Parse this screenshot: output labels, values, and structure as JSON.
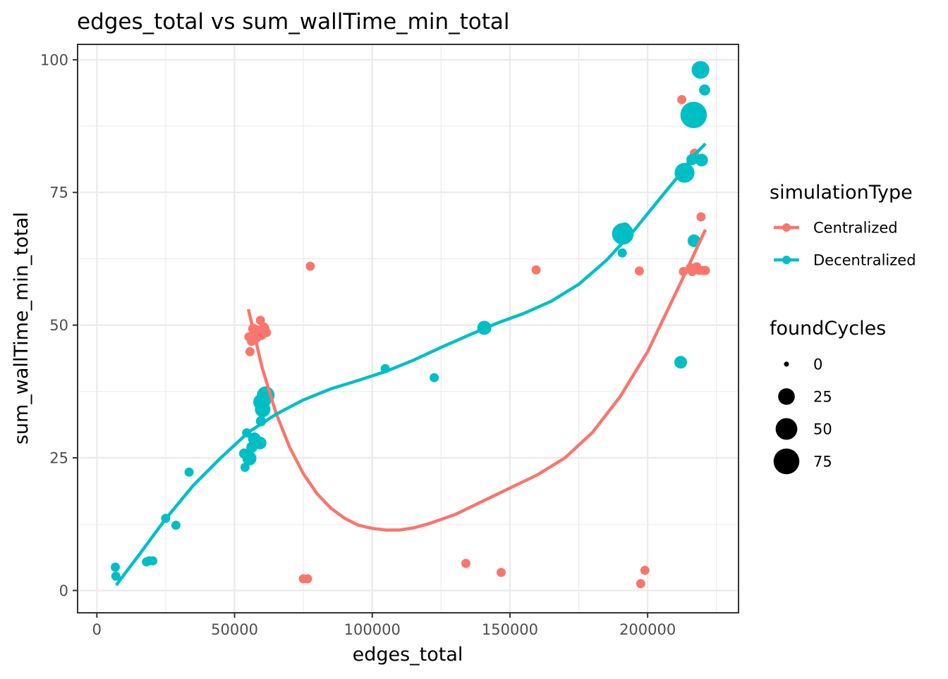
{
  "chart_data": {
    "type": "scatter",
    "title": "edges_total  vs  sum_wallTime_min_total",
    "xlabel": "edges_total",
    "ylabel": "sum_wallTime_min_total",
    "xlim": [
      -7000,
      233000
    ],
    "ylim": [
      -4.2,
      102.9
    ],
    "x_ticks": [
      0,
      50000,
      100000,
      150000,
      200000
    ],
    "x_tick_labels": [
      "0",
      "50000",
      "100000",
      "150000",
      "200000"
    ],
    "y_ticks": [
      0,
      25,
      50,
      75,
      100
    ],
    "y_tick_labels": [
      "0",
      "25",
      "50",
      "75",
      "100"
    ],
    "grid": true,
    "legend_position": "right",
    "colors": {
      "Centralized": "#F8766D",
      "Decentralized": "#00BFC4"
    },
    "color_legend": {
      "title": "simulationType",
      "entries": [
        "Centralized",
        "Decentralized"
      ]
    },
    "size_legend": {
      "title": "foundCycles",
      "entries": [
        {
          "label": "0",
          "value": 0
        },
        {
          "label": "25",
          "value": 25
        },
        {
          "label": "50",
          "value": 50
        },
        {
          "label": "75",
          "value": 75
        }
      ]
    },
    "series": [
      {
        "name": "Centralized",
        "points": [
          [
            55200,
            47.8,
            0
          ],
          [
            55600,
            45.0,
            0
          ],
          [
            56200,
            47.0,
            1
          ],
          [
            56800,
            49.3,
            3
          ],
          [
            57300,
            48.4,
            2
          ],
          [
            57900,
            47.6,
            1
          ],
          [
            58300,
            48.2,
            1
          ],
          [
            58800,
            49.0,
            2
          ],
          [
            59400,
            50.9,
            0
          ],
          [
            59800,
            48.1,
            1
          ],
          [
            60200,
            48.6,
            0
          ],
          [
            60600,
            49.6,
            1
          ],
          [
            61000,
            49.4,
            0
          ],
          [
            61600,
            48.6,
            0
          ],
          [
            77500,
            61.1,
            0
          ],
          [
            75000,
            2.2,
            0
          ],
          [
            76500,
            2.2,
            0
          ],
          [
            134000,
            5.1,
            0
          ],
          [
            146800,
            3.4,
            0
          ],
          [
            159500,
            60.4,
            0
          ],
          [
            197000,
            60.2,
            0
          ],
          [
            197500,
            1.3,
            0
          ],
          [
            199000,
            3.8,
            0
          ],
          [
            212400,
            92.5,
            0
          ],
          [
            213000,
            60.1,
            0
          ],
          [
            215500,
            60.8,
            0
          ],
          [
            216200,
            60.1,
            0
          ],
          [
            217000,
            82.4,
            0
          ],
          [
            217800,
            61.0,
            0
          ],
          [
            218800,
            60.3,
            0
          ],
          [
            219400,
            70.4,
            0
          ],
          [
            220300,
            60.3,
            0
          ],
          [
            221000,
            60.3,
            0
          ]
        ],
        "smooth": [
          [
            55000,
            53.0
          ],
          [
            60000,
            42.0
          ],
          [
            65000,
            33.5
          ],
          [
            70000,
            27.0
          ],
          [
            75000,
            22.0
          ],
          [
            80000,
            18.2
          ],
          [
            85000,
            15.5
          ],
          [
            90000,
            13.6
          ],
          [
            95000,
            12.3
          ],
          [
            100000,
            11.7
          ],
          [
            105000,
            11.4
          ],
          [
            110000,
            11.4
          ],
          [
            115000,
            11.8
          ],
          [
            120000,
            12.5
          ],
          [
            130000,
            14.3
          ],
          [
            140000,
            16.8
          ],
          [
            150000,
            19.3
          ],
          [
            160000,
            21.8
          ],
          [
            170000,
            25.0
          ],
          [
            180000,
            29.8
          ],
          [
            190000,
            36.5
          ],
          [
            200000,
            45.0
          ],
          [
            210000,
            55.8
          ],
          [
            215000,
            61.3
          ],
          [
            221000,
            68.0
          ]
        ]
      },
      {
        "name": "Decentralized",
        "points": [
          [
            6700,
            4.4,
            0
          ],
          [
            6900,
            2.7,
            0
          ],
          [
            18000,
            5.4,
            0
          ],
          [
            19000,
            5.6,
            0
          ],
          [
            20300,
            5.6,
            0
          ],
          [
            25000,
            13.6,
            0
          ],
          [
            28700,
            12.3,
            0
          ],
          [
            33500,
            22.3,
            0
          ],
          [
            53500,
            25.8,
            3
          ],
          [
            53800,
            23.2,
            0
          ],
          [
            54400,
            29.7,
            0
          ],
          [
            55400,
            24.9,
            15
          ],
          [
            56300,
            27.0,
            5
          ],
          [
            57200,
            28.6,
            10
          ],
          [
            58000,
            28.0,
            5
          ],
          [
            59300,
            27.8,
            10
          ],
          [
            59600,
            31.9,
            3
          ],
          [
            59800,
            35.5,
            25
          ],
          [
            60200,
            34.1,
            20
          ],
          [
            60800,
            35.9,
            15
          ],
          [
            61300,
            36.8,
            30
          ],
          [
            104700,
            41.8,
            0
          ],
          [
            122500,
            40.1,
            0
          ],
          [
            140700,
            49.5,
            15
          ],
          [
            190800,
            63.6,
            0
          ],
          [
            191000,
            67.2,
            50
          ],
          [
            191700,
            68.3,
            5
          ],
          [
            212000,
            43.0,
            10
          ],
          [
            213400,
            78.7,
            40
          ],
          [
            216100,
            81.2,
            5
          ],
          [
            216700,
            89.6,
            80
          ],
          [
            216800,
            65.9,
            10
          ],
          [
            219200,
            98.1,
            30
          ],
          [
            219600,
            81.1,
            10
          ],
          [
            220700,
            94.3,
            5
          ]
        ],
        "smooth": [
          [
            7000,
            1.0
          ],
          [
            15000,
            6.5
          ],
          [
            25000,
            13.5
          ],
          [
            35000,
            19.8
          ],
          [
            45000,
            25.0
          ],
          [
            55000,
            29.8
          ],
          [
            65000,
            33.2
          ],
          [
            75000,
            35.9
          ],
          [
            85000,
            38.0
          ],
          [
            95000,
            39.6
          ],
          [
            105000,
            41.3
          ],
          [
            115000,
            43.4
          ],
          [
            125000,
            45.8
          ],
          [
            135000,
            48.1
          ],
          [
            145000,
            50.3
          ],
          [
            155000,
            52.2
          ],
          [
            165000,
            54.5
          ],
          [
            175000,
            57.7
          ],
          [
            185000,
            62.2
          ],
          [
            195000,
            67.8
          ],
          [
            205000,
            74.2
          ],
          [
            212000,
            78.6
          ],
          [
            216000,
            81.5
          ],
          [
            221000,
            84.2
          ]
        ]
      }
    ]
  }
}
